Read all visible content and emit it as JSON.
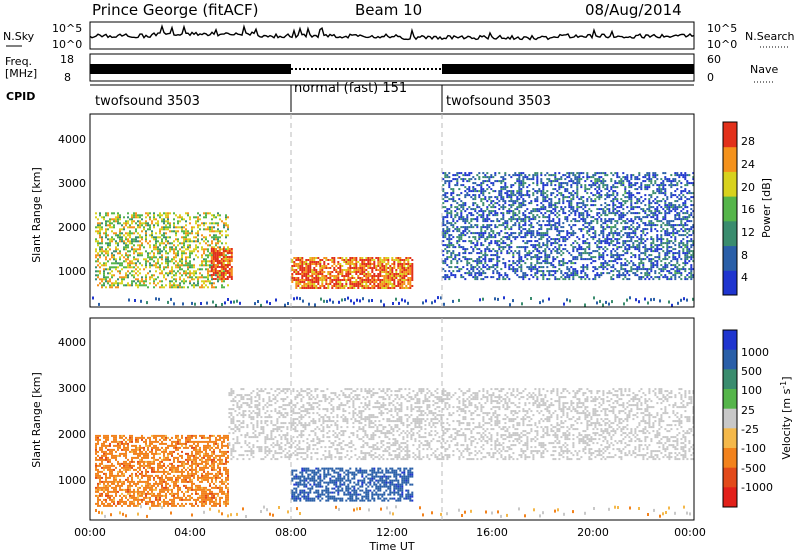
{
  "header": {
    "station": "Prince George (fitACF)",
    "beam": "Beam 10",
    "date": "08/Aug/2014"
  },
  "noise_panel": {
    "left_label": "N.Sky",
    "right_label": "N.Search",
    "left_ticks": [
      "10^5",
      "10^0"
    ],
    "right_ticks": [
      "10^5",
      "10^0"
    ]
  },
  "freq_panel": {
    "left_label_1": "Freq.",
    "left_label_2": "[MHz]",
    "right_label": "Nave",
    "left_ticks": [
      "18",
      "8"
    ],
    "right_ticks": [
      "60",
      "0"
    ]
  },
  "cpid_panel": {
    "label": "CPID",
    "modes": [
      {
        "name": "twofsound 3503",
        "start_hour": 0,
        "end_hour": 8
      },
      {
        "name": "normal (fast) 151",
        "start_hour": 8,
        "end_hour": 14
      },
      {
        "name": "twofsound 3503",
        "start_hour": 14,
        "end_hour": 24
      }
    ]
  },
  "chart_data": [
    {
      "type": "heatmap",
      "quantity": "Power",
      "ylabel": "Slant Range [km]",
      "ylim": [
        180,
        4500
      ],
      "y_ticks": [
        "1000",
        "2000",
        "3000",
        "4000"
      ],
      "xlim": [
        0,
        24
      ],
      "colorbar": {
        "label": "Power [dB]",
        "ticks": [
          "4",
          "8",
          "12",
          "16",
          "20",
          "24",
          "28"
        ],
        "range": [
          0,
          30
        ],
        "colors": [
          "#1f35cf",
          "#2a5fa8",
          "#3a8c6e",
          "#55b54a",
          "#d8d21e",
          "#f4921c",
          "#e2301a"
        ]
      },
      "features": [
        {
          "desc": "scatter band",
          "start_hour": 0.2,
          "end_hour": 5.5,
          "range_km": [
            600,
            2300
          ],
          "typical_db": 18
        },
        {
          "desc": "strong echoes",
          "start_hour": 4.8,
          "end_hour": 5.6,
          "range_km": [
            800,
            1500
          ],
          "typical_db": 28
        },
        {
          "desc": "strong echoes",
          "start_hour": 8.0,
          "end_hour": 12.8,
          "range_km": [
            600,
            1300
          ],
          "typical_db": 26
        },
        {
          "desc": "weak scatter",
          "start_hour": 14.0,
          "end_hour": 24.0,
          "range_km": [
            800,
            3200
          ],
          "typical_db": 6
        }
      ]
    },
    {
      "type": "heatmap",
      "quantity": "Velocity",
      "ylabel": "Slant Range [km]",
      "ylim": [
        180,
        4500
      ],
      "y_ticks": [
        "1000",
        "2000",
        "3000",
        "4000"
      ],
      "xlim": [
        0,
        24
      ],
      "colorbar": {
        "label": "Velocity [m s^-1]",
        "ticks": [
          "1000",
          "500",
          "100",
          "25",
          "-25",
          "-100",
          "-500",
          "-1000"
        ],
        "colors": [
          "#1f35cf",
          "#2a5fa8",
          "#3a8c6e",
          "#55b54a",
          "#c8c8c8",
          "#f4b84a",
          "#f2821c",
          "#e24a1a",
          "#e2201a"
        ]
      },
      "features": [
        {
          "desc": "away flow",
          "start_hour": 0.2,
          "end_hour": 5.5,
          "range_km": [
            500,
            2000
          ],
          "typical_ms": -300
        },
        {
          "desc": "toward flow",
          "start_hour": 8.0,
          "end_hour": 12.8,
          "range_km": [
            600,
            1300
          ],
          "typical_ms": 600
        },
        {
          "desc": "ground scatter",
          "start_hour": 5.5,
          "end_hour": 24.0,
          "range_km": [
            1500,
            3000
          ],
          "typical_ms": 0
        }
      ]
    }
  ],
  "x_axis": {
    "ticks": [
      "00:00",
      "04:00",
      "08:00",
      "12:00",
      "16:00",
      "20:00",
      "00:00"
    ],
    "label": "Time UT"
  },
  "colors": {
    "mode_divider": "#bbbbbb"
  }
}
